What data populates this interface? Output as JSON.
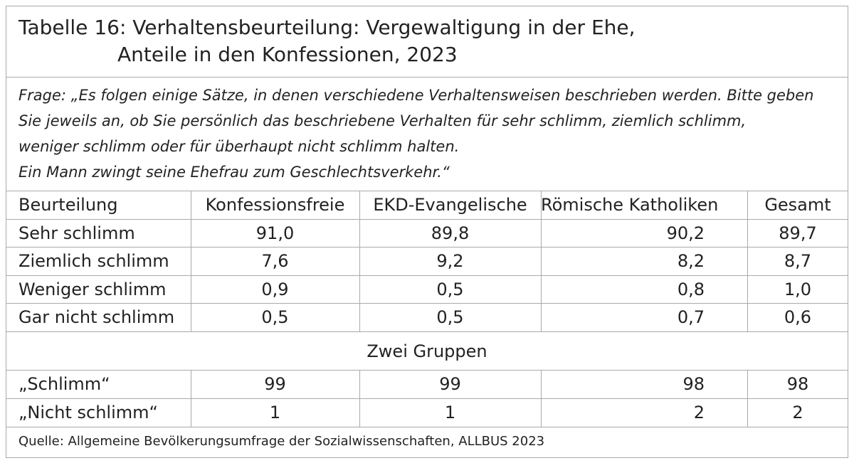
{
  "title": {
    "lines": [
      "Tabelle 16: Verhaltensbeurteilung: Vergewaltigung in der Ehe,",
      "Anteile in den Konfessionen, 2023"
    ]
  },
  "question": {
    "lines": [
      "Frage: „Es folgen einige Sätze, in denen verschiedene Verhaltensweisen beschrieben werden. Bitte geben",
      "Sie jeweils an, ob Sie persönlich das beschriebene Verhalten für sehr schlimm, ziemlich schlimm,",
      "weniger schlimm oder für überhaupt nicht schlimm halten.",
      "Ein Mann zwingt seine Ehefrau zum Geschlechtsverkehr.“"
    ]
  },
  "table": {
    "header": [
      "Beurteilung",
      "Konfessionsfreie",
      "EKD-Evangelische",
      "Römische Katholiken",
      "Gesamt"
    ],
    "rows": [
      [
        "Sehr schlimm",
        "91,0",
        "89,8",
        "90,2",
        "89,7"
      ],
      [
        "Ziemlich schlimm",
        "7,6",
        "9,2",
        "8,2",
        "8,7"
      ],
      [
        "Weniger schlimm",
        "0,9",
        "0,5",
        "0,8",
        "1,0"
      ],
      [
        "Gar nicht schlimm",
        "0,5",
        "0,5",
        "0,7",
        "0,6"
      ]
    ],
    "group_label": "Zwei Gruppen",
    "group_rows": [
      [
        "„Schlimm“",
        "99",
        "99",
        "98",
        "98"
      ],
      [
        "„Nicht schlimm“",
        "1",
        "1",
        "2",
        "2"
      ]
    ]
  },
  "source": "Quelle: Allgemeine Bevölkerungsumfrage der Sozialwissenschaften, ALLBUS 2023"
}
